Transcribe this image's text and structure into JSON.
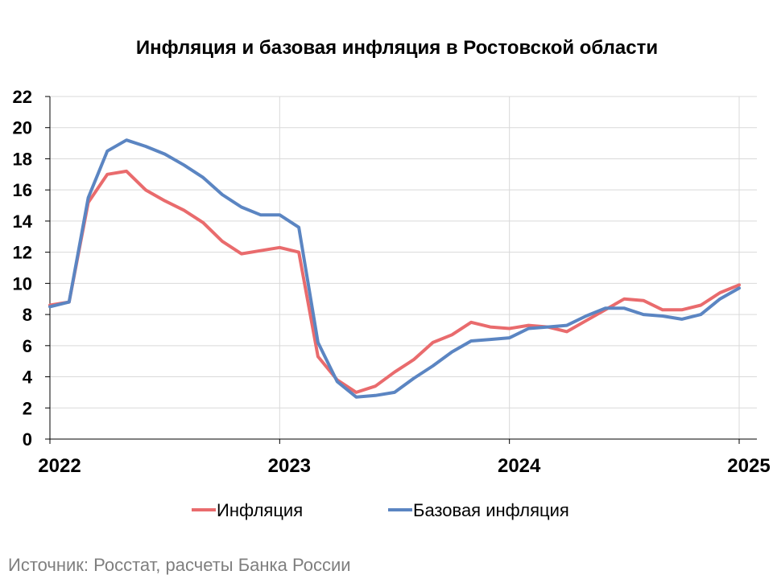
{
  "chart_data": {
    "type": "line",
    "title": "Инфляция и базовая инфляция в Ростовской области",
    "source": "Источник: Росстат, расчеты Банка России",
    "ylim": [
      0,
      22
    ],
    "yticks": [
      0,
      2,
      4,
      6,
      8,
      10,
      12,
      14,
      16,
      18,
      20,
      22
    ],
    "xlim": [
      "2022-01",
      "2025-01"
    ],
    "xticks": [
      "2022",
      "2023",
      "2024",
      "2025"
    ],
    "grid": true,
    "legend_position": "bottom",
    "x": [
      "2022-01",
      "2022-02",
      "2022-03",
      "2022-04",
      "2022-05",
      "2022-06",
      "2022-07",
      "2022-08",
      "2022-09",
      "2022-10",
      "2022-11",
      "2022-12",
      "2023-01",
      "2023-02",
      "2023-03",
      "2023-04",
      "2023-05",
      "2023-06",
      "2023-07",
      "2023-08",
      "2023-09",
      "2023-10",
      "2023-11",
      "2023-12",
      "2024-01",
      "2024-02",
      "2024-03",
      "2024-04",
      "2024-05",
      "2024-06",
      "2024-07",
      "2024-08",
      "2024-09",
      "2024-10",
      "2024-11",
      "2024-12",
      "2025-01"
    ],
    "series": [
      {
        "name": "Инфляция",
        "color": "#e96b6d",
        "values": [
          8.6,
          8.8,
          15.2,
          17.0,
          17.2,
          16.0,
          15.3,
          14.7,
          13.9,
          12.7,
          11.9,
          12.1,
          12.3,
          12.0,
          5.3,
          3.8,
          3.0,
          3.4,
          4.3,
          5.1,
          6.2,
          6.7,
          7.5,
          7.2,
          7.1,
          7.3,
          7.2,
          6.9,
          7.6,
          8.3,
          9.0,
          8.9,
          8.3,
          8.3,
          8.6,
          9.4,
          9.9
        ]
      },
      {
        "name": "Базовая инфляция",
        "color": "#5b85c2",
        "values": [
          8.5,
          8.8,
          15.5,
          18.5,
          19.2,
          18.8,
          18.3,
          17.6,
          16.8,
          15.7,
          14.9,
          14.4,
          14.4,
          13.6,
          6.2,
          3.7,
          2.7,
          2.8,
          3.0,
          3.9,
          4.7,
          5.6,
          6.3,
          6.4,
          6.5,
          7.1,
          7.2,
          7.3,
          7.9,
          8.4,
          8.4,
          8.0,
          7.9,
          7.7,
          8.0,
          9.0,
          9.7
        ]
      }
    ]
  }
}
